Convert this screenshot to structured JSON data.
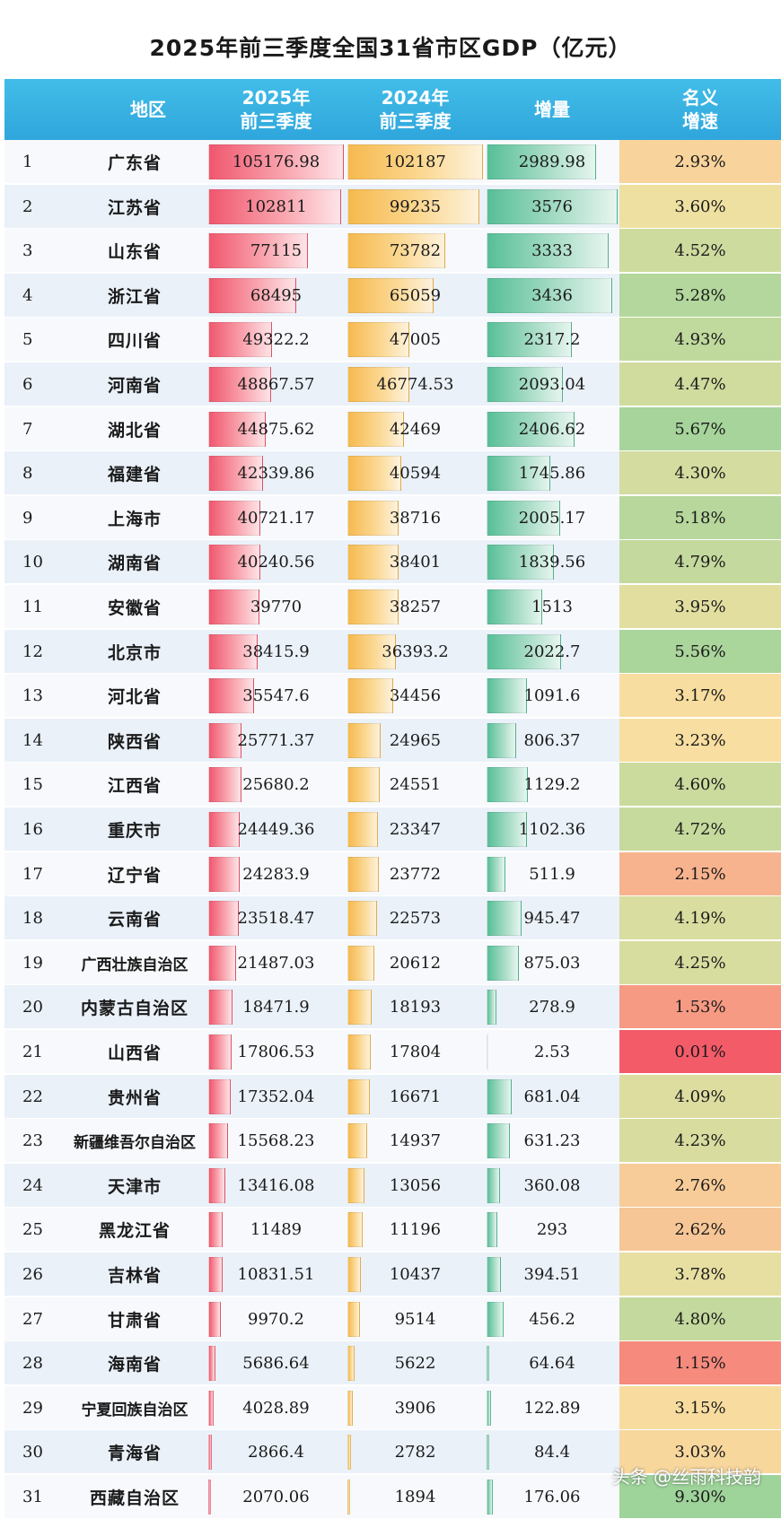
{
  "title": "2025年前三季度全国31省市区GDP（亿元）",
  "header": {
    "region": "地区",
    "gdp2025_l1": "2025年",
    "gdp2025_l2": "前三季度",
    "gdp2024_l1": "2024年",
    "gdp2024_l2": "前三季度",
    "increase": "增量",
    "growth_l1": "名义",
    "growth_l2": "增速"
  },
  "watermark": "头条 @丝雨科技韵",
  "colors": {
    "header": "#35ade0",
    "bar_2025": "#f0576e",
    "bar_2024": "#f6b94f",
    "bar_increase": "#57bf98",
    "growth_low": "#f45b69",
    "growth_mid": "#f8e2a2",
    "growth_high": "#9ed39a"
  },
  "chart_data": {
    "type": "table",
    "title": "2025年前三季度全国31省市区GDP（亿元）",
    "columns": [
      "",
      "地区",
      "2025年前三季度",
      "2024年前三季度",
      "增量",
      "名义增速"
    ],
    "rows": [
      {
        "rank": "1",
        "region": "广东省",
        "gdp2025": "105176.98",
        "gdp2024": "102187",
        "increase": "2989.98",
        "growth": "2.93%"
      },
      {
        "rank": "2",
        "region": "江苏省",
        "gdp2025": "102811",
        "gdp2024": "99235",
        "increase": "3576",
        "growth": "3.60%"
      },
      {
        "rank": "3",
        "region": "山东省",
        "gdp2025": "77115",
        "gdp2024": "73782",
        "increase": "3333",
        "growth": "4.52%"
      },
      {
        "rank": "4",
        "region": "浙江省",
        "gdp2025": "68495",
        "gdp2024": "65059",
        "increase": "3436",
        "growth": "5.28%"
      },
      {
        "rank": "5",
        "region": "四川省",
        "gdp2025": "49322.2",
        "gdp2024": "47005",
        "increase": "2317.2",
        "growth": "4.93%"
      },
      {
        "rank": "6",
        "region": "河南省",
        "gdp2025": "48867.57",
        "gdp2024": "46774.53",
        "increase": "2093.04",
        "growth": "4.47%"
      },
      {
        "rank": "7",
        "region": "湖北省",
        "gdp2025": "44875.62",
        "gdp2024": "42469",
        "increase": "2406.62",
        "growth": "5.67%"
      },
      {
        "rank": "8",
        "region": "福建省",
        "gdp2025": "42339.86",
        "gdp2024": "40594",
        "increase": "1745.86",
        "growth": "4.30%"
      },
      {
        "rank": "9",
        "region": "上海市",
        "gdp2025": "40721.17",
        "gdp2024": "38716",
        "increase": "2005.17",
        "growth": "5.18%"
      },
      {
        "rank": "10",
        "region": "湖南省",
        "gdp2025": "40240.56",
        "gdp2024": "38401",
        "increase": "1839.56",
        "growth": "4.79%"
      },
      {
        "rank": "11",
        "region": "安徽省",
        "gdp2025": "39770",
        "gdp2024": "38257",
        "increase": "1513",
        "growth": "3.95%"
      },
      {
        "rank": "12",
        "region": "北京市",
        "gdp2025": "38415.9",
        "gdp2024": "36393.2",
        "increase": "2022.7",
        "growth": "5.56%"
      },
      {
        "rank": "13",
        "region": "河北省",
        "gdp2025": "35547.6",
        "gdp2024": "34456",
        "increase": "1091.6",
        "growth": "3.17%"
      },
      {
        "rank": "14",
        "region": "陕西省",
        "gdp2025": "25771.37",
        "gdp2024": "24965",
        "increase": "806.37",
        "growth": "3.23%"
      },
      {
        "rank": "15",
        "region": "江西省",
        "gdp2025": "25680.2",
        "gdp2024": "24551",
        "increase": "1129.2",
        "growth": "4.60%"
      },
      {
        "rank": "16",
        "region": "重庆市",
        "gdp2025": "24449.36",
        "gdp2024": "23347",
        "increase": "1102.36",
        "growth": "4.72%"
      },
      {
        "rank": "17",
        "region": "辽宁省",
        "gdp2025": "24283.9",
        "gdp2024": "23772",
        "increase": "511.9",
        "growth": "2.15%"
      },
      {
        "rank": "18",
        "region": "云南省",
        "gdp2025": "23518.47",
        "gdp2024": "22573",
        "increase": "945.47",
        "growth": "4.19%"
      },
      {
        "rank": "19",
        "region": "广西壮族自治区",
        "gdp2025": "21487.03",
        "gdp2024": "20612",
        "increase": "875.03",
        "growth": "4.25%"
      },
      {
        "rank": "20",
        "region": "内蒙古自治区",
        "gdp2025": "18471.9",
        "gdp2024": "18193",
        "increase": "278.9",
        "growth": "1.53%"
      },
      {
        "rank": "21",
        "region": "山西省",
        "gdp2025": "17806.53",
        "gdp2024": "17804",
        "increase": "2.53",
        "growth": "0.01%"
      },
      {
        "rank": "22",
        "region": "贵州省",
        "gdp2025": "17352.04",
        "gdp2024": "16671",
        "increase": "681.04",
        "growth": "4.09%"
      },
      {
        "rank": "23",
        "region": "新疆维吾尔自治区",
        "gdp2025": "15568.23",
        "gdp2024": "14937",
        "increase": "631.23",
        "growth": "4.23%"
      },
      {
        "rank": "24",
        "region": "天津市",
        "gdp2025": "13416.08",
        "gdp2024": "13056",
        "increase": "360.08",
        "growth": "2.76%"
      },
      {
        "rank": "25",
        "region": "黑龙江省",
        "gdp2025": "11489",
        "gdp2024": "11196",
        "increase": "293",
        "growth": "2.62%"
      },
      {
        "rank": "26",
        "region": "吉林省",
        "gdp2025": "10831.51",
        "gdp2024": "10437",
        "increase": "394.51",
        "growth": "3.78%"
      },
      {
        "rank": "27",
        "region": "甘肃省",
        "gdp2025": "9970.2",
        "gdp2024": "9514",
        "increase": "456.2",
        "growth": "4.80%"
      },
      {
        "rank": "28",
        "region": "海南省",
        "gdp2025": "5686.64",
        "gdp2024": "5622",
        "increase": "64.64",
        "growth": "1.15%"
      },
      {
        "rank": "29",
        "region": "宁夏回族自治区",
        "gdp2025": "4028.89",
        "gdp2024": "3906",
        "increase": "122.89",
        "growth": "3.15%"
      },
      {
        "rank": "30",
        "region": "青海省",
        "gdp2025": "2866.4",
        "gdp2024": "2782",
        "increase": "84.4",
        "growth": "3.03%"
      },
      {
        "rank": "31",
        "region": "西藏自治区",
        "gdp2025": "2070.06",
        "gdp2024": "1894",
        "increase": "176.06",
        "growth": "9.30%"
      }
    ]
  }
}
